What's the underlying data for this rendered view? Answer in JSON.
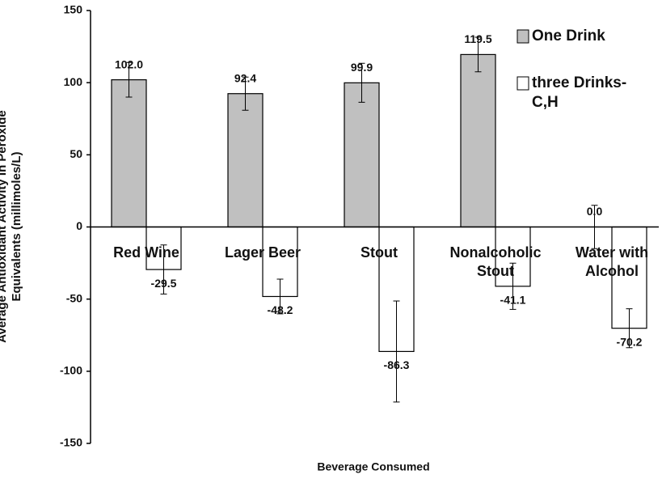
{
  "chart_data": {
    "type": "bar",
    "y_label": "Average Antioxidant Activity in Peroxide Equivalents (millimoles/L)",
    "x_label": "Beverage Consumed",
    "categories": [
      "Red Wine",
      "Lager Beer",
      "Stout",
      "Nonalcoholic Stout",
      "Water with Alcohol"
    ],
    "series": [
      {
        "name": "One Drink",
        "color": "#c0c0c0",
        "values": [
          102,
          92.4,
          99.9,
          119.5,
          0
        ],
        "value_labels": [
          "102.0",
          "92.4",
          "99.9",
          "119.5",
          "0.0"
        ],
        "errors": [
          12,
          11.5,
          13.5,
          12,
          15
        ]
      },
      {
        "name": "three Drinks-C,H",
        "color": "#ffffff",
        "values": [
          -29.5,
          -48.2,
          -86.3,
          -41.1,
          -70.2
        ],
        "value_labels": [
          "-29.5",
          "-48.2",
          "-86.3",
          "-41.1",
          "-70.2"
        ],
        "errors": [
          17,
          12,
          35,
          16,
          13.5
        ]
      }
    ],
    "ylim": [
      -150,
      150
    ],
    "yticks": [
      -150,
      -100,
      -50,
      0,
      50,
      100,
      150
    ],
    "grid": false,
    "legend": "top-right"
  }
}
